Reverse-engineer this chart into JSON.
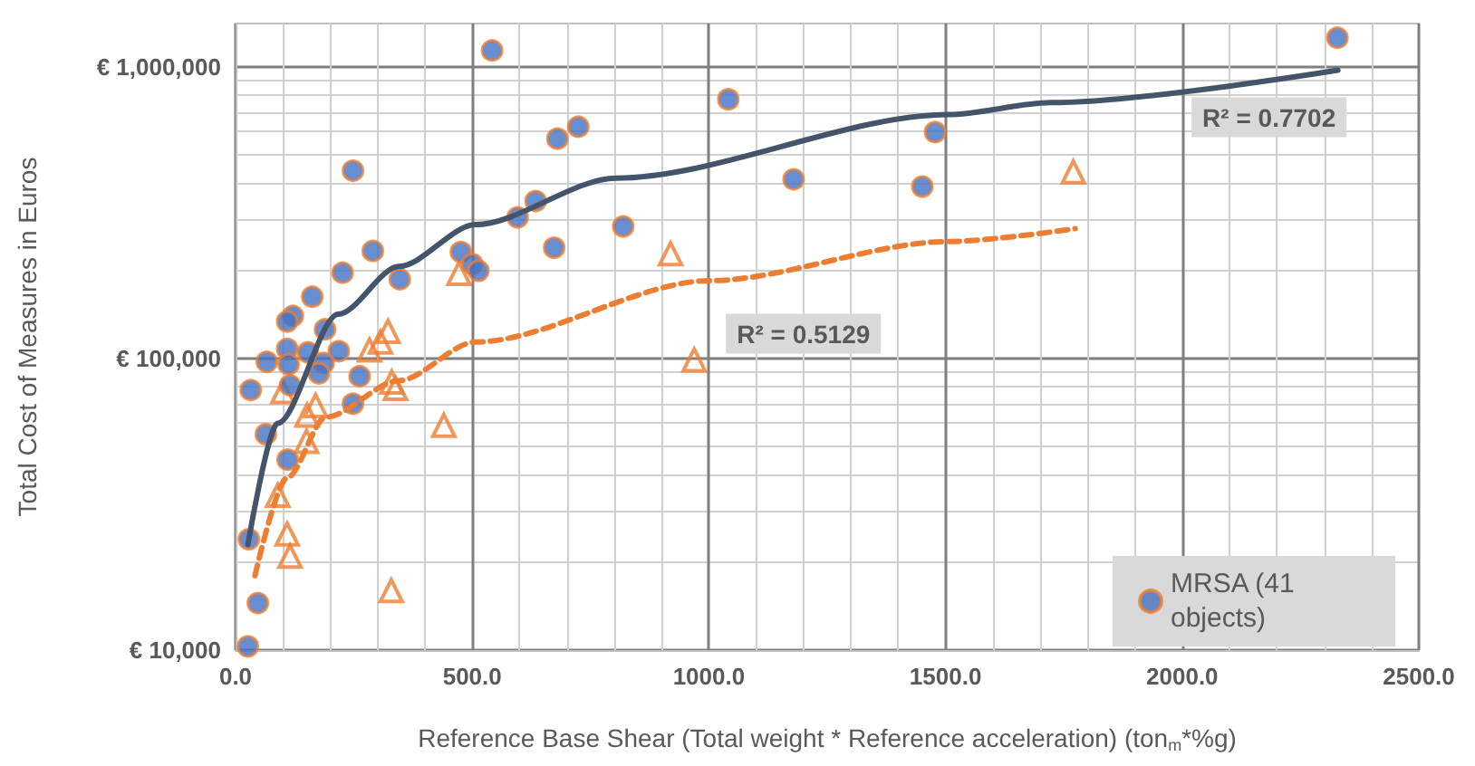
{
  "chart_data": {
    "type": "scatter",
    "xlabel": "Reference Base Shear (Total weight * Reference acceleration) (ton$_{m}$*%g)",
    "ylabel": "Total Cost of Measures in Euros",
    "xlim": [
      0,
      2500
    ],
    "xticks": [
      {
        "value": 0,
        "label": "0.0"
      },
      {
        "value": 500,
        "label": "500.0"
      },
      {
        "value": 1000,
        "label": "1000.0"
      },
      {
        "value": 1500,
        "label": "1500.0"
      },
      {
        "value": 2000,
        "label": "2000.0"
      },
      {
        "value": 2500,
        "label": "2500.0"
      }
    ],
    "ylim": [
      10000,
      1410000
    ],
    "yticks": [
      {
        "value": 10000,
        "label": "€ 10,000"
      },
      {
        "value": 100000,
        "label": "€ 100,000"
      },
      {
        "value": 1000000,
        "label": "€ 1,000,000"
      }
    ],
    "log": "y",
    "grid": true,
    "legend": "bottom right",
    "series": [
      {
        "name": "MRSA (41 objects)",
        "marker": "circle",
        "color": "#4472c4",
        "x": [
          542,
          724,
          680,
          248,
          634,
          596,
          819,
          673,
          476,
          290,
          500,
          513,
          226,
          347,
          162,
          121,
          109,
          189,
          109,
          218,
          153,
          66,
          112,
          186,
          176,
          262,
          115,
          32,
          248,
          64,
          110,
          28,
          47,
          26,
          1041,
          1179,
          1451,
          1478,
          2328
        ],
        "values": [
          1140000,
          624000,
          568000,
          441000,
          347000,
          305000,
          284000,
          240000,
          232000,
          234000,
          211000,
          200000,
          197000,
          187000,
          163000,
          140000,
          134000,
          126000,
          108000,
          106000,
          105000,
          97500,
          95700,
          96500,
          89000,
          87000,
          81000,
          78000,
          70000,
          55000,
          45000,
          24000,
          14500,
          10300,
          775000,
          412000,
          389000,
          598000,
          1260000
        ]
      },
      {
        "marker": "triangle",
        "color": "#ed7d31",
        "x": [
          472,
          322,
          306,
          283,
          330,
          338,
          100,
          169,
          151,
          440,
          150,
          89,
          109,
          115,
          329,
          969,
          919,
          1770
        ],
        "values": [
          196000,
          124000,
          114000,
          107000,
          83000,
          79000,
          77000,
          69000,
          64000,
          59000,
          52000,
          34000,
          25000,
          21000,
          16000,
          99000,
          229000,
          437000
        ]
      },
      {
        "type": "line",
        "marker": "none",
        "color": "#44546a",
        "line_style": "solid",
        "x": [
          26,
          89,
          217,
          345,
          507,
          804,
          1506,
          1723,
          2329
        ],
        "values": [
          23000,
          60000,
          142000,
          207000,
          288000,
          416000,
          687000,
          755000,
          975000
        ]
      },
      {
        "type": "line",
        "marker": "none",
        "color": "#ed7d31",
        "line_style": "dashed",
        "x": [
          41,
          109,
          191,
          345,
          507,
          1002,
          1506,
          1774
        ],
        "values": [
          18000,
          39000,
          63000,
          84000,
          114000,
          185000,
          252000,
          279000
        ]
      }
    ],
    "annotations": [
      "R² = 0.7702",
      "R² = 0.5129"
    ]
  }
}
